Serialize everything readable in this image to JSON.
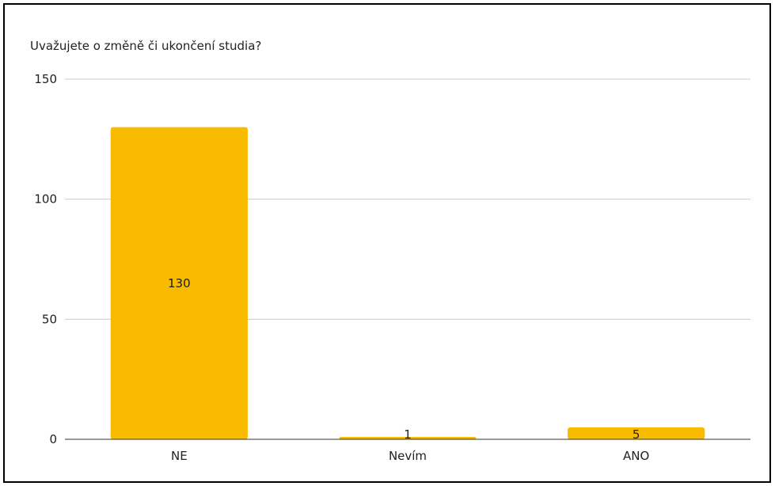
{
  "chart_data": {
    "type": "bar",
    "title": "Uvažujete o změně či ukončení studia?",
    "categories": [
      "NE",
      "Nevím",
      "ANO"
    ],
    "series": [
      {
        "values": [
          130,
          1,
          5
        ]
      }
    ],
    "data_labels": [
      "130",
      "1",
      "5"
    ],
    "ylim": [
      0,
      150
    ],
    "yticks": [
      0,
      50,
      100,
      150
    ],
    "grid": true,
    "legend": "none",
    "bar_color": "#F9BB00"
  }
}
